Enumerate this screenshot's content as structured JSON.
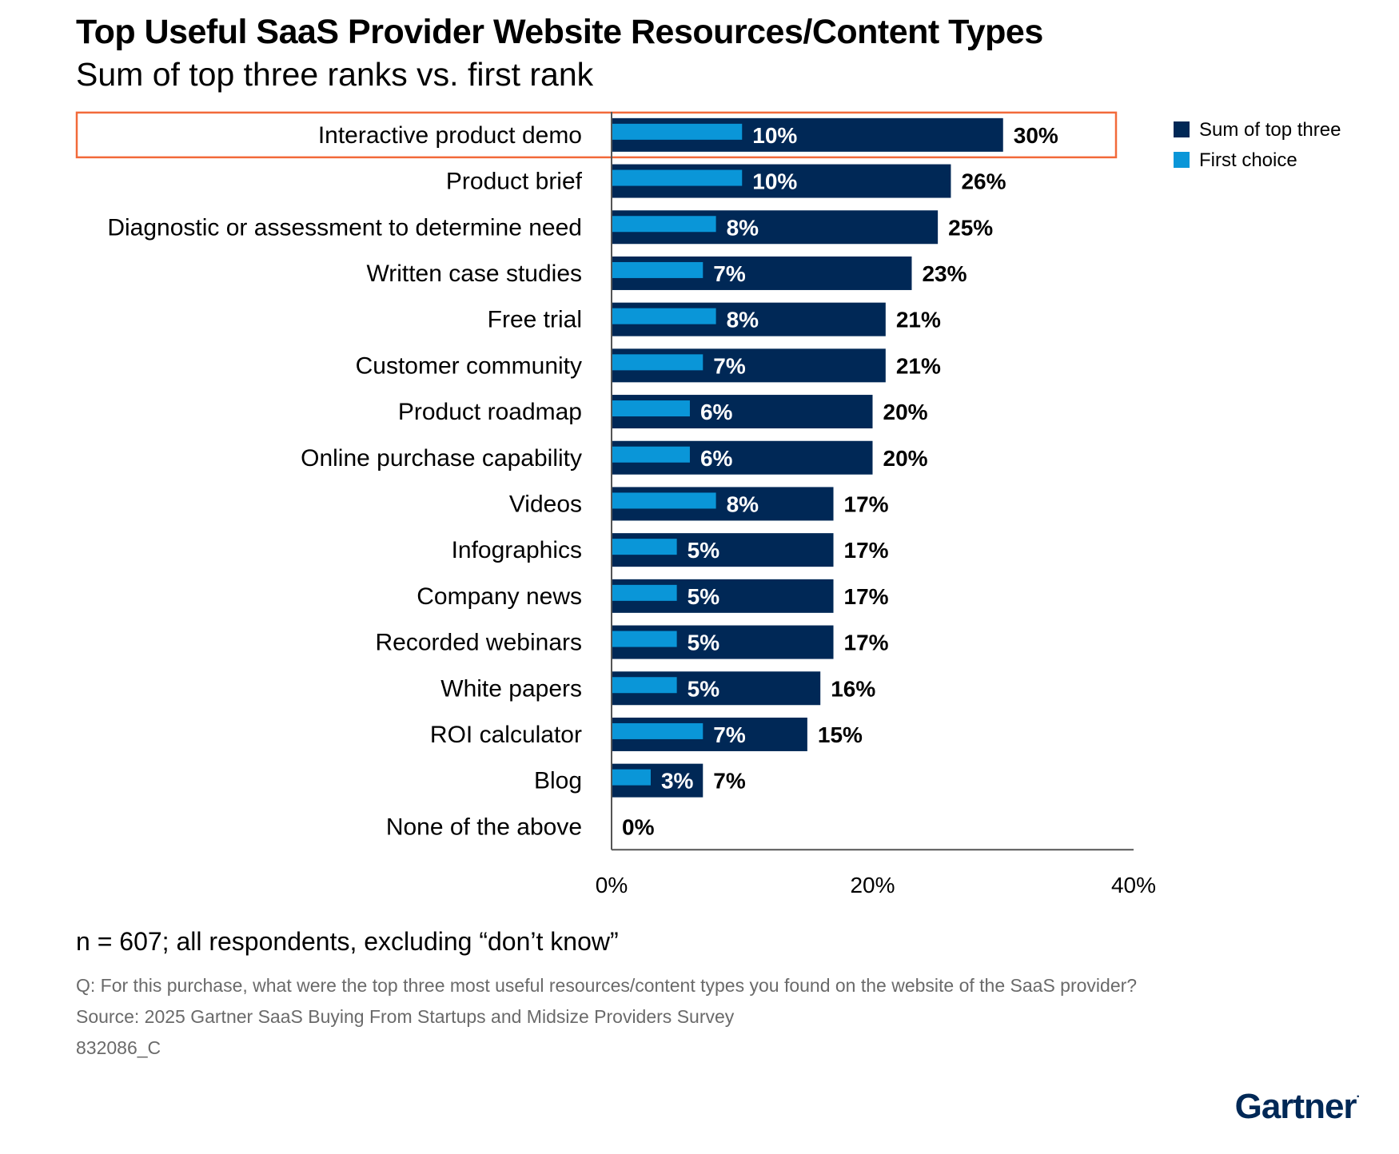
{
  "header": {
    "title": "Top Useful SaaS Provider Website Resources/Content Types",
    "subtitle": "Sum of top three ranks vs. first rank"
  },
  "chart_data": {
    "type": "bar",
    "orientation": "horizontal",
    "categories": [
      "Interactive product demo",
      "Product brief",
      "Diagnostic or assessment to determine need",
      "Written case studies",
      "Free trial",
      "Customer community",
      "Product roadmap",
      "Online purchase capability",
      "Videos",
      "Infographics",
      "Company news",
      "Recorded webinars",
      "White papers",
      "ROI calculator",
      "Blog",
      "None of the above"
    ],
    "series": [
      {
        "name": "Sum of top three",
        "color": "#002856",
        "values": [
          30,
          26,
          25,
          23,
          21,
          21,
          20,
          20,
          17,
          17,
          17,
          17,
          16,
          15,
          7,
          0
        ],
        "labels": [
          "30%",
          "26%",
          "25%",
          "23%",
          "21%",
          "21%",
          "20%",
          "20%",
          "17%",
          "17%",
          "17%",
          "17%",
          "16%",
          "15%",
          "7%",
          "0%"
        ]
      },
      {
        "name": "First choice",
        "color": "#0a96d8",
        "values": [
          10,
          10,
          8,
          7,
          8,
          7,
          6,
          6,
          8,
          5,
          5,
          5,
          5,
          7,
          3,
          0
        ],
        "labels": [
          "10%",
          "10%",
          "8%",
          "7%",
          "8%",
          "7%",
          "6%",
          "6%",
          "8%",
          "5%",
          "5%",
          "5%",
          "5%",
          "7%",
          "3%",
          ""
        ]
      }
    ],
    "xlim": [
      0,
      40
    ],
    "xticks": [
      "0%",
      "20%",
      "40%"
    ],
    "highlight_index": 0,
    "highlight_color": "#f26a3a",
    "legend_position": "top-right",
    "grid": false
  },
  "footer": {
    "note": "n = 607; all respondents, excluding “don’t know”",
    "question": "Q: For this purchase, what were the top three most useful resources/content types you found on the website of the SaaS provider?",
    "source": "Source: 2025 Gartner SaaS Buying From Startups and Midsize Providers Survey",
    "code": "832086_C",
    "brand": "Gartner",
    "brand_mark": "."
  }
}
